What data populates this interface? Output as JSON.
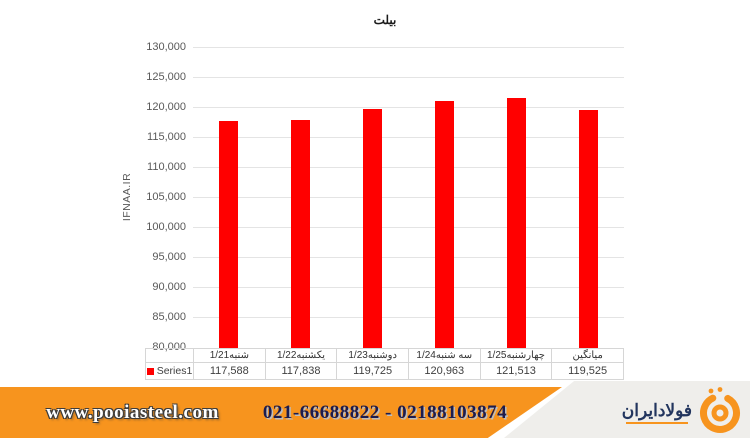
{
  "chart": {
    "title": "بیلت",
    "y_axis_title": "IFNAA.IR"
  },
  "chart_data": {
    "type": "bar",
    "title": "بیلت",
    "ylabel": "IFNAA.IR",
    "xlabel": "",
    "categories": [
      "شنبه1/21",
      "یکشنبه1/22",
      "دوشنبه1/23",
      "سه شنبه1/24",
      "چهارشنبه1/25",
      "میانگین"
    ],
    "series": [
      {
        "name": "Series1",
        "values": [
          117588,
          117838,
          119725,
          120963,
          121513,
          119525
        ]
      }
    ],
    "ylim": [
      80000,
      130000
    ],
    "ytick_step": 5000,
    "grid": true,
    "bar_color": "#ff0000",
    "legend_position": "table-row-left"
  },
  "table": {
    "legend_label": "Series1",
    "values": [
      "117,588",
      "117,838",
      "119,725",
      "120,963",
      "121,513",
      "119,525"
    ]
  },
  "footer": {
    "website": "www.pooiasteel.com",
    "phone": "021-66688822 - 02188103874",
    "logo_text": "فولادایران",
    "accent_color": "#f7941e",
    "logo_text_color": "#22355e",
    "phone_color": "#1c1c4e"
  }
}
